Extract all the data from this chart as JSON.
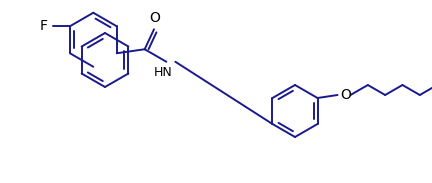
{
  "bg_color": "#ffffff",
  "line_color": "#1a1a8c",
  "text_color": "#000000",
  "figsize": [
    4.32,
    1.83
  ],
  "dpi": 100,
  "F_label": "F",
  "O_label": "O",
  "NH_label": "HN",
  "carbonyl_O": "O",
  "line_width": 1.4,
  "font_size": 9
}
